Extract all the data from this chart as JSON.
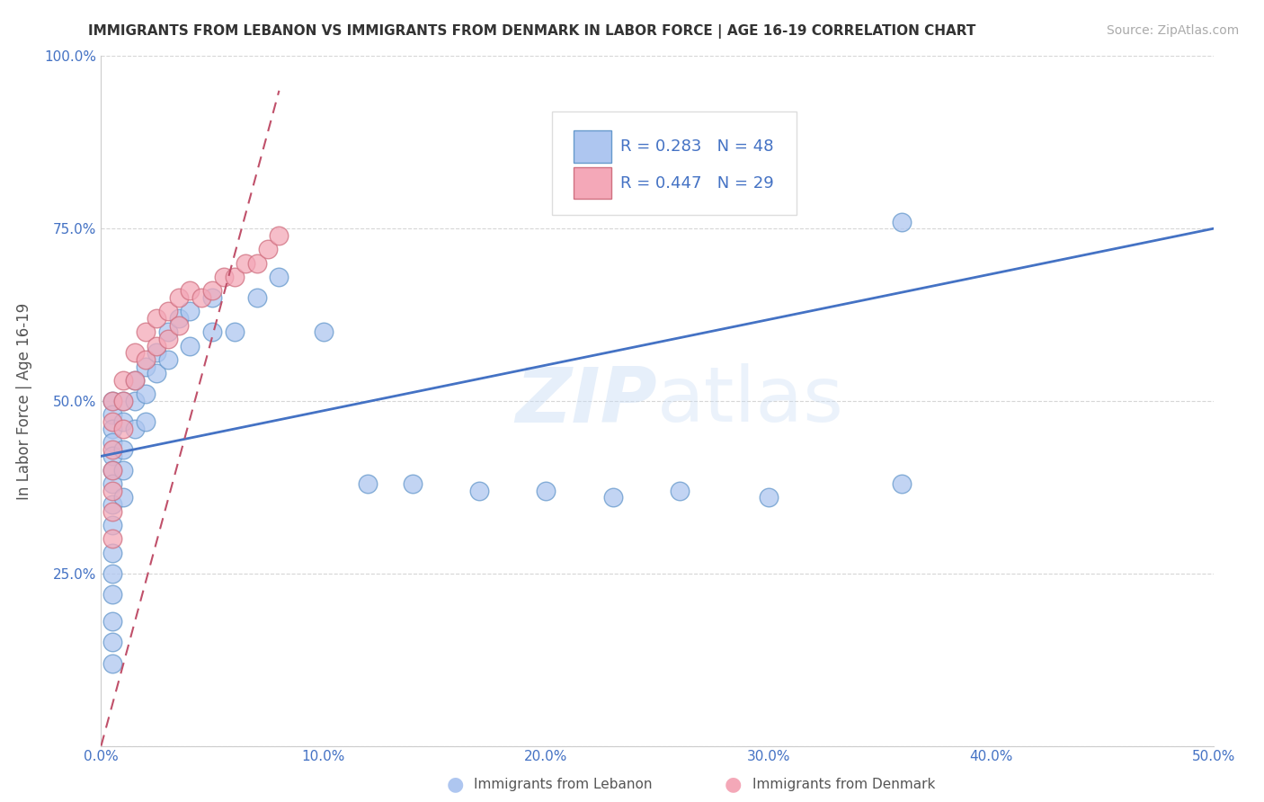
{
  "title": "IMMIGRANTS FROM LEBANON VS IMMIGRANTS FROM DENMARK IN LABOR FORCE | AGE 16-19 CORRELATION CHART",
  "source": "Source: ZipAtlas.com",
  "ylabel": "In Labor Force | Age 16-19",
  "xlim": [
    0,
    0.5
  ],
  "ylim": [
    0,
    1.0
  ],
  "xticks": [
    0.0,
    0.1,
    0.2,
    0.3,
    0.4,
    0.5
  ],
  "yticks": [
    0.0,
    0.25,
    0.5,
    0.75,
    1.0
  ],
  "xticklabels": [
    "0.0%",
    "10.0%",
    "20.0%",
    "30.0%",
    "40.0%",
    "50.0%"
  ],
  "yticklabels": [
    "",
    "25.0%",
    "50.0%",
    "75.0%",
    "100.0%"
  ],
  "blue_line_color": "#4472c4",
  "pink_line_color": "#c0506a",
  "scatter_blue_color": "#aec6f0",
  "scatter_pink_color": "#f4a8b8",
  "scatter_blue_edge": "#6699cc",
  "scatter_pink_edge": "#d07080",
  "grid_color": "#cccccc",
  "bg_color": "#ffffff",
  "watermark": "ZIPatlas",
  "legend_r1": "R = 0.283",
  "legend_n1": "N = 48",
  "legend_r2": "R = 0.447",
  "legend_n2": "N = 29",
  "bottom_label1": "Immigrants from Lebanon",
  "bottom_label2": "Immigrants from Denmark",
  "blue_line_x0": 0.0,
  "blue_line_y0": 0.42,
  "blue_line_x1": 0.5,
  "blue_line_y1": 0.75,
  "pink_line_x0": 0.0,
  "pink_line_y0": 0.0,
  "pink_line_x1": 0.08,
  "pink_line_y1": 0.95,
  "lebanon_x": [
    0.005,
    0.005,
    0.005,
    0.005,
    0.005,
    0.005,
    0.005,
    0.005,
    0.005,
    0.005,
    0.005,
    0.005,
    0.005,
    0.005,
    0.005,
    0.01,
    0.01,
    0.01,
    0.01,
    0.01,
    0.015,
    0.015,
    0.015,
    0.02,
    0.02,
    0.02,
    0.025,
    0.025,
    0.03,
    0.03,
    0.035,
    0.04,
    0.04,
    0.05,
    0.05,
    0.06,
    0.07,
    0.08,
    0.1,
    0.12,
    0.14,
    0.17,
    0.2,
    0.23,
    0.26,
    0.3,
    0.36,
    0.36
  ],
  "lebanon_y": [
    0.5,
    0.48,
    0.46,
    0.44,
    0.42,
    0.4,
    0.38,
    0.35,
    0.32,
    0.28,
    0.25,
    0.22,
    0.18,
    0.15,
    0.12,
    0.5,
    0.47,
    0.43,
    0.4,
    0.36,
    0.53,
    0.5,
    0.46,
    0.55,
    0.51,
    0.47,
    0.57,
    0.54,
    0.6,
    0.56,
    0.62,
    0.63,
    0.58,
    0.65,
    0.6,
    0.6,
    0.65,
    0.68,
    0.6,
    0.38,
    0.38,
    0.37,
    0.37,
    0.36,
    0.37,
    0.36,
    0.76,
    0.38
  ],
  "denmark_x": [
    0.005,
    0.005,
    0.005,
    0.005,
    0.005,
    0.005,
    0.005,
    0.01,
    0.01,
    0.01,
    0.015,
    0.015,
    0.02,
    0.02,
    0.025,
    0.025,
    0.03,
    0.03,
    0.035,
    0.035,
    0.04,
    0.045,
    0.05,
    0.055,
    0.06,
    0.065,
    0.07,
    0.075,
    0.08
  ],
  "denmark_y": [
    0.5,
    0.47,
    0.43,
    0.4,
    0.37,
    0.34,
    0.3,
    0.53,
    0.5,
    0.46,
    0.57,
    0.53,
    0.6,
    0.56,
    0.62,
    0.58,
    0.63,
    0.59,
    0.65,
    0.61,
    0.66,
    0.65,
    0.66,
    0.68,
    0.68,
    0.7,
    0.7,
    0.72,
    0.74
  ]
}
